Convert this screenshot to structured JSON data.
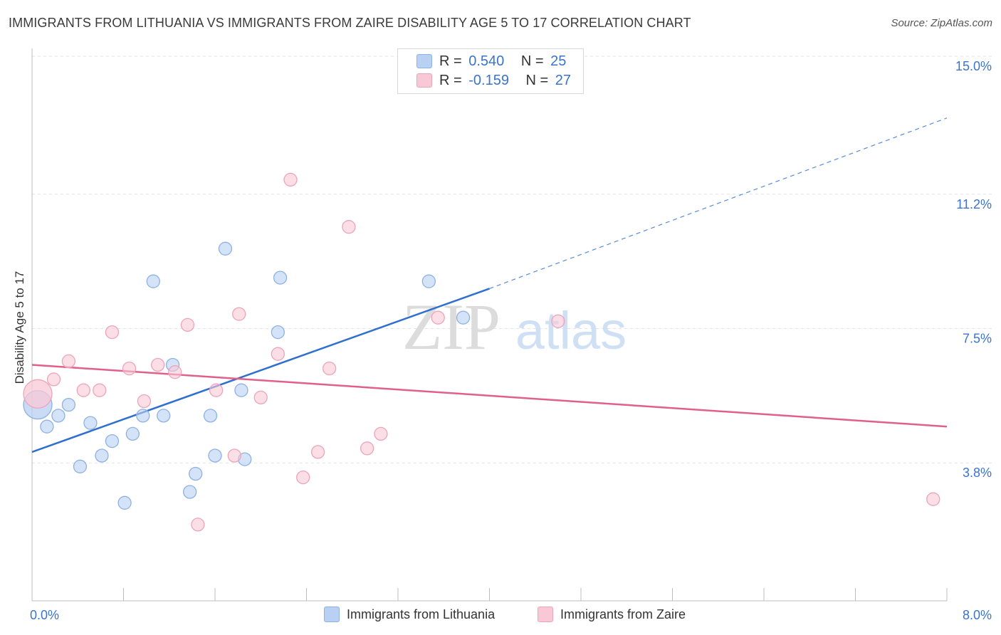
{
  "title": "IMMIGRANTS FROM LITHUANIA VS IMMIGRANTS FROM ZAIRE DISABILITY AGE 5 TO 17 CORRELATION CHART",
  "source": "Source: ZipAtlas.com",
  "watermark": {
    "zip": "ZIP",
    "atlas": "atlas"
  },
  "stats": {
    "lithuania": {
      "r_label": "R =",
      "r_value": "0.540",
      "n_label": "N =",
      "n_value": "25"
    },
    "zaire": {
      "r_label": "R =",
      "r_value": "-0.159",
      "n_label": "N =",
      "n_value": "27"
    }
  },
  "chart_data": {
    "type": "scatter",
    "ylabel": "Disability Age 5 to 17",
    "xlim": [
      0,
      8
    ],
    "ylim": [
      0,
      15
    ],
    "x_tick_labels": [
      "0.0%",
      "8.0%"
    ],
    "y_ticks": [
      {
        "value": 3.8,
        "label": "3.8%"
      },
      {
        "value": 7.5,
        "label": "7.5%"
      },
      {
        "value": 11.2,
        "label": "11.2%"
      },
      {
        "value": 15.0,
        "label": "15.0%"
      }
    ],
    "legend_placement": "bottom-center",
    "series": [
      {
        "name": "Immigrants from Lithuania",
        "color": "#b8d0f2",
        "stroke": "#8eb1e3",
        "line_color": "#2e6fcf",
        "trend": {
          "x0": 0,
          "y0": 4.1,
          "x1": 4.0,
          "y1": 8.6,
          "dash_x1": 8.0,
          "dash_y1": 13.3
        },
        "points": [
          {
            "x": 0.05,
            "y": 5.4,
            "big": true
          },
          {
            "x": 0.13,
            "y": 4.8
          },
          {
            "x": 0.23,
            "y": 5.1
          },
          {
            "x": 0.32,
            "y": 5.4
          },
          {
            "x": 0.42,
            "y": 3.7
          },
          {
            "x": 0.51,
            "y": 4.9
          },
          {
            "x": 0.61,
            "y": 4.0
          },
          {
            "x": 0.7,
            "y": 4.4
          },
          {
            "x": 0.81,
            "y": 2.7
          },
          {
            "x": 0.88,
            "y": 4.6
          },
          {
            "x": 0.97,
            "y": 5.1
          },
          {
            "x": 1.06,
            "y": 8.8
          },
          {
            "x": 1.15,
            "y": 5.1
          },
          {
            "x": 1.23,
            "y": 6.5
          },
          {
            "x": 1.38,
            "y": 3.0
          },
          {
            "x": 1.43,
            "y": 3.5
          },
          {
            "x": 1.56,
            "y": 5.1
          },
          {
            "x": 1.6,
            "y": 4.0
          },
          {
            "x": 1.69,
            "y": 9.7
          },
          {
            "x": 1.83,
            "y": 5.8
          },
          {
            "x": 1.86,
            "y": 3.9
          },
          {
            "x": 2.15,
            "y": 7.4
          },
          {
            "x": 2.17,
            "y": 8.9
          },
          {
            "x": 3.47,
            "y": 8.8
          },
          {
            "x": 3.77,
            "y": 7.8
          }
        ]
      },
      {
        "name": "Immigrants from Zaire",
        "color": "#f8c8d6",
        "stroke": "#eca4bb",
        "line_color": "#e0608a",
        "trend": {
          "x0": 0,
          "y0": 6.5,
          "x1": 8.0,
          "y1": 4.8
        },
        "points": [
          {
            "x": 0.05,
            "y": 5.7,
            "big": true
          },
          {
            "x": 0.19,
            "y": 6.1
          },
          {
            "x": 0.32,
            "y": 6.6
          },
          {
            "x": 0.45,
            "y": 5.8
          },
          {
            "x": 0.59,
            "y": 5.8
          },
          {
            "x": 0.7,
            "y": 7.4
          },
          {
            "x": 0.85,
            "y": 6.4
          },
          {
            "x": 0.98,
            "y": 5.5
          },
          {
            "x": 1.1,
            "y": 6.5
          },
          {
            "x": 1.25,
            "y": 6.3
          },
          {
            "x": 1.36,
            "y": 7.6
          },
          {
            "x": 1.45,
            "y": 2.1
          },
          {
            "x": 1.61,
            "y": 5.8
          },
          {
            "x": 1.77,
            "y": 4.0
          },
          {
            "x": 1.81,
            "y": 7.9
          },
          {
            "x": 2.0,
            "y": 5.6
          },
          {
            "x": 2.15,
            "y": 6.8
          },
          {
            "x": 2.26,
            "y": 11.6
          },
          {
            "x": 2.37,
            "y": 3.4
          },
          {
            "x": 2.5,
            "y": 4.1
          },
          {
            "x": 2.6,
            "y": 6.4
          },
          {
            "x": 2.77,
            "y": 10.3
          },
          {
            "x": 2.93,
            "y": 4.2
          },
          {
            "x": 3.05,
            "y": 4.6
          },
          {
            "x": 3.55,
            "y": 7.8
          },
          {
            "x": 4.6,
            "y": 7.7
          },
          {
            "x": 7.88,
            "y": 2.8
          }
        ]
      }
    ]
  }
}
